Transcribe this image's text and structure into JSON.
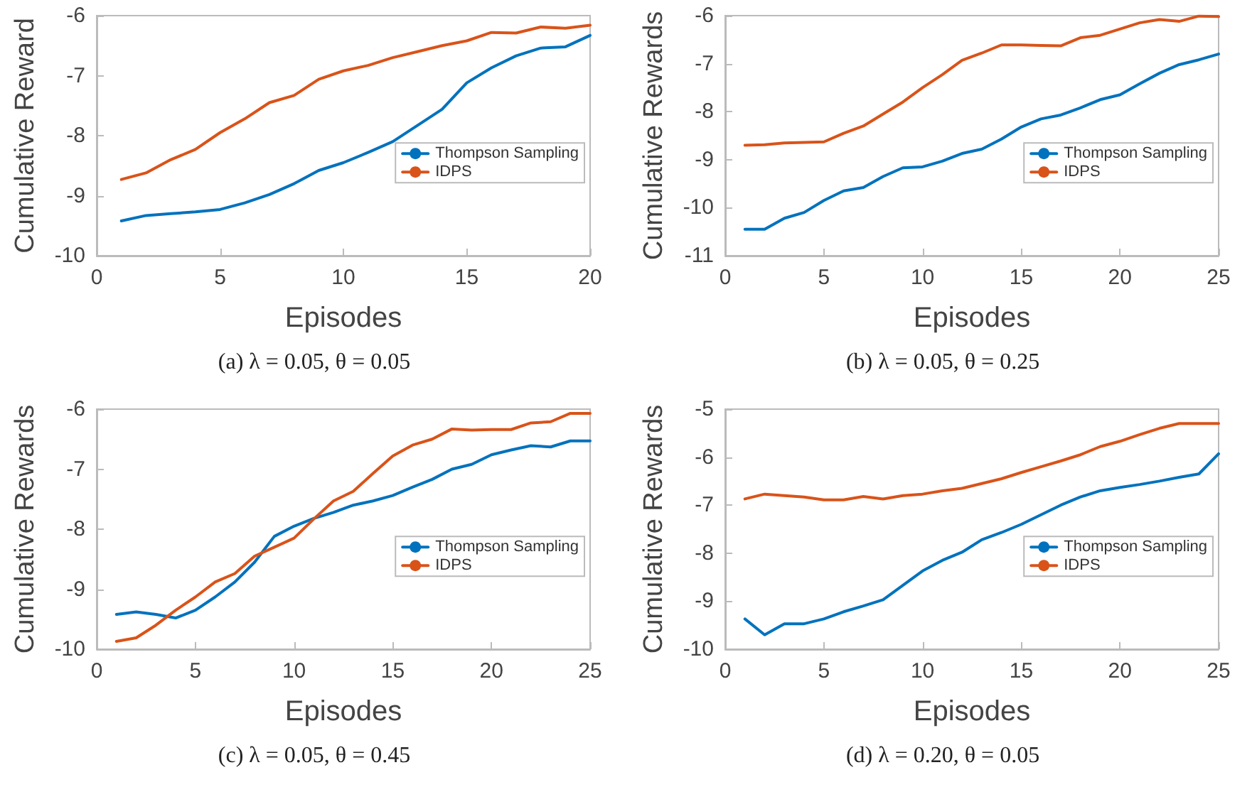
{
  "chart_data": [
    {
      "type": "line",
      "xlabel": "Episodes",
      "ylabel": "Cumulative Reward",
      "annotations": [
        "(a) λ = 0.05, θ = 0.05"
      ],
      "xlim": [
        0,
        20
      ],
      "xticks": [
        0,
        5,
        10,
        15,
        20
      ],
      "ylim": [
        -10,
        -6
      ],
      "yticks": [
        -10,
        -9,
        -8,
        -7,
        -6
      ],
      "grid": false,
      "legend": "right",
      "marker": "none",
      "line_style": "solid",
      "x": [
        1,
        2,
        3,
        4,
        5,
        6,
        7,
        8,
        9,
        10,
        11,
        12,
        13,
        14,
        15,
        16,
        17,
        18,
        19,
        20
      ],
      "series": [
        {
          "name": "Thompson Sampling",
          "color": "#0072bd",
          "values": [
            -9.42,
            -9.33,
            -9.3,
            -9.27,
            -9.23,
            -9.12,
            -8.98,
            -8.8,
            -8.58,
            -8.45,
            -8.28,
            -8.1,
            -7.83,
            -7.56,
            -7.12,
            -6.87,
            -6.67,
            -6.54,
            -6.52,
            -6.33
          ]
        },
        {
          "name": "IDPS",
          "color": "#d95319",
          "values": [
            -8.73,
            -8.62,
            -8.4,
            -8.23,
            -7.95,
            -7.72,
            -7.45,
            -7.33,
            -7.06,
            -6.92,
            -6.83,
            -6.7,
            -6.6,
            -6.5,
            -6.42,
            -6.28,
            -6.29,
            -6.19,
            -6.21,
            -6.16
          ]
        }
      ]
    },
    {
      "type": "line",
      "xlabel": "Episodes",
      "ylabel": "Cumulative Rewards",
      "annotations": [
        "(b) λ = 0.05, θ = 0.25"
      ],
      "xlim": [
        0,
        25
      ],
      "xticks": [
        0,
        5,
        10,
        15,
        20,
        25
      ],
      "ylim": [
        -11,
        -6
      ],
      "yticks": [
        -11,
        -10,
        -9,
        -8,
        -7,
        -6
      ],
      "grid": false,
      "legend": "right",
      "marker": "none",
      "line_style": "solid",
      "x": [
        1,
        2,
        3,
        4,
        5,
        6,
        7,
        8,
        9,
        10,
        11,
        12,
        13,
        14,
        15,
        16,
        17,
        18,
        19,
        20,
        21,
        22,
        23,
        24,
        25
      ],
      "series": [
        {
          "name": "Thompson Sampling",
          "color": "#0072bd",
          "values": [
            -10.45,
            -10.45,
            -10.22,
            -10.1,
            -9.85,
            -9.65,
            -9.58,
            -9.35,
            -9.17,
            -9.15,
            -9.03,
            -8.87,
            -8.78,
            -8.57,
            -8.32,
            -8.15,
            -8.07,
            -7.92,
            -7.75,
            -7.65,
            -7.42,
            -7.2,
            -7.02,
            -6.92,
            -6.8
          ]
        },
        {
          "name": "IDPS",
          "color": "#d95319",
          "values": [
            -8.7,
            -8.69,
            -8.65,
            -8.64,
            -8.63,
            -8.45,
            -8.3,
            -8.05,
            -7.8,
            -7.5,
            -7.23,
            -6.93,
            -6.78,
            -6.61,
            -6.61,
            -6.62,
            -6.63,
            -6.46,
            -6.41,
            -6.28,
            -6.15,
            -6.08,
            -6.12,
            -6.01,
            -6.02
          ]
        }
      ]
    },
    {
      "type": "line",
      "xlabel": "Episodes",
      "ylabel": "Cumulative Rewards",
      "annotations": [
        "(c) λ = 0.05, θ = 0.45"
      ],
      "xlim": [
        0,
        25
      ],
      "xticks": [
        0,
        5,
        10,
        15,
        20,
        25
      ],
      "ylim": [
        -10,
        -6
      ],
      "yticks": [
        -10,
        -9,
        -8,
        -7,
        -6
      ],
      "grid": false,
      "legend": "right",
      "marker": "none",
      "line_style": "solid",
      "x": [
        1,
        2,
        3,
        4,
        5,
        6,
        7,
        8,
        9,
        10,
        11,
        12,
        13,
        14,
        15,
        16,
        17,
        18,
        19,
        20,
        21,
        22,
        23,
        24,
        25
      ],
      "series": [
        {
          "name": "Thompson Sampling",
          "color": "#0072bd",
          "values": [
            -9.42,
            -9.38,
            -9.42,
            -9.48,
            -9.35,
            -9.13,
            -8.88,
            -8.55,
            -8.12,
            -7.95,
            -7.82,
            -7.72,
            -7.6,
            -7.53,
            -7.44,
            -7.3,
            -7.17,
            -7.0,
            -6.92,
            -6.76,
            -6.68,
            -6.61,
            -6.63,
            -6.53,
            -6.53
          ]
        },
        {
          "name": "IDPS",
          "color": "#d95319",
          "values": [
            -9.87,
            -9.81,
            -9.6,
            -9.35,
            -9.13,
            -8.88,
            -8.74,
            -8.45,
            -8.3,
            -8.15,
            -7.83,
            -7.53,
            -7.37,
            -7.07,
            -6.78,
            -6.6,
            -6.5,
            -6.33,
            -6.35,
            -6.34,
            -6.34,
            -6.23,
            -6.21,
            -6.07,
            -6.07
          ]
        }
      ]
    },
    {
      "type": "line",
      "xlabel": "Episodes",
      "ylabel": "Cumulative Rewards",
      "annotations": [
        "(d) λ = 0.20, θ = 0.05"
      ],
      "xlim": [
        0,
        25
      ],
      "xticks": [
        0,
        5,
        10,
        15,
        20,
        25
      ],
      "ylim": [
        -10,
        -5
      ],
      "yticks": [
        -10,
        -9,
        -8,
        -7,
        -6,
        -5
      ],
      "grid": false,
      "legend": "right",
      "marker": "none",
      "line_style": "solid",
      "x": [
        1,
        2,
        3,
        4,
        5,
        6,
        7,
        8,
        9,
        10,
        11,
        12,
        13,
        14,
        15,
        16,
        17,
        18,
        19,
        20,
        21,
        22,
        23,
        24,
        25
      ],
      "series": [
        {
          "name": "Thompson Sampling",
          "color": "#0072bd",
          "values": [
            -9.37,
            -9.7,
            -9.47,
            -9.47,
            -9.37,
            -9.22,
            -9.1,
            -8.97,
            -8.67,
            -8.37,
            -8.15,
            -7.98,
            -7.72,
            -7.57,
            -7.4,
            -7.2,
            -7.0,
            -6.83,
            -6.7,
            -6.63,
            -6.57,
            -6.5,
            -6.42,
            -6.35,
            -5.93
          ]
        },
        {
          "name": "IDPS",
          "color": "#d95319",
          "values": [
            -6.87,
            -6.77,
            -6.8,
            -6.83,
            -6.89,
            -6.89,
            -6.82,
            -6.87,
            -6.8,
            -6.77,
            -6.7,
            -6.65,
            -6.55,
            -6.45,
            -6.32,
            -6.2,
            -6.08,
            -5.95,
            -5.78,
            -5.67,
            -5.53,
            -5.4,
            -5.3,
            -5.3,
            -5.3
          ]
        }
      ]
    }
  ]
}
